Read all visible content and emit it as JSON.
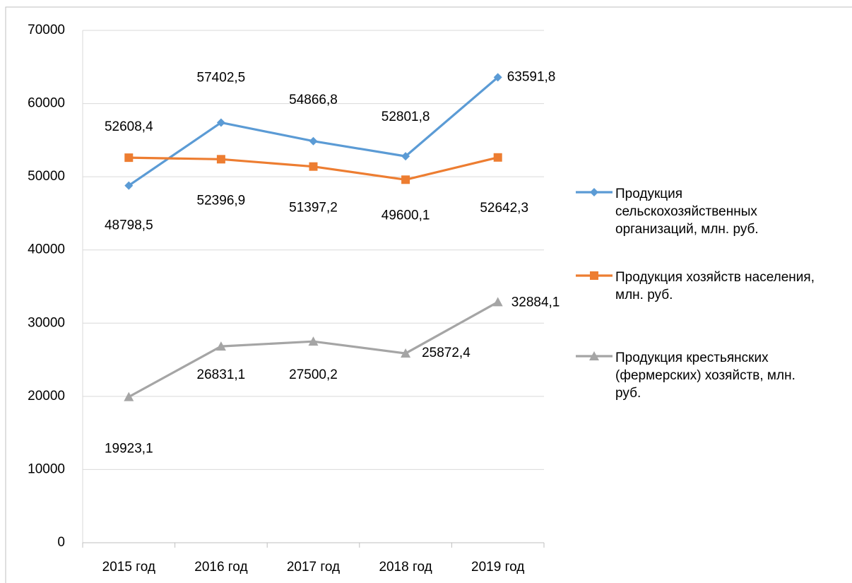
{
  "chart_data": {
    "type": "line",
    "categories": [
      "2015 год",
      "2016 год",
      "2017 год",
      "2018 год",
      "2019 год"
    ],
    "series": [
      {
        "name": "Продукция сельскохозяйственных организаций, млн. руб.",
        "color": "#5b9bd5",
        "marker": "diamond",
        "values": [
          48798.5,
          57402.5,
          54866.8,
          52801.8,
          63591.8
        ],
        "value_labels": [
          "48798,5",
          "57402,5",
          "54866,8",
          "52801,8",
          "63591,8"
        ]
      },
      {
        "name": "Продукция хозяйств населения, млн. руб.",
        "color": "#ed7d31",
        "marker": "square",
        "values": [
          52608.4,
          52396.9,
          51397.2,
          49600.1,
          52642.3
        ],
        "value_labels": [
          "52608,4",
          "52396,9",
          "51397,2",
          "49600,1",
          "52642,3"
        ]
      },
      {
        "name": "Продукция крестьянских (фермерских) хозяйств, млн. руб.",
        "color": "#a5a5a5",
        "marker": "triangle",
        "values": [
          19923.1,
          26831.1,
          27500.2,
          25872.4,
          32884.1
        ],
        "value_labels": [
          "19923,1",
          "26831,1",
          "27500,2",
          "25872,4",
          "32884,1"
        ]
      }
    ],
    "ylim": [
      0,
      70000
    ],
    "yticks": [
      0,
      10000,
      20000,
      30000,
      40000,
      50000,
      60000,
      70000
    ],
    "grid": true,
    "legend": "right"
  }
}
